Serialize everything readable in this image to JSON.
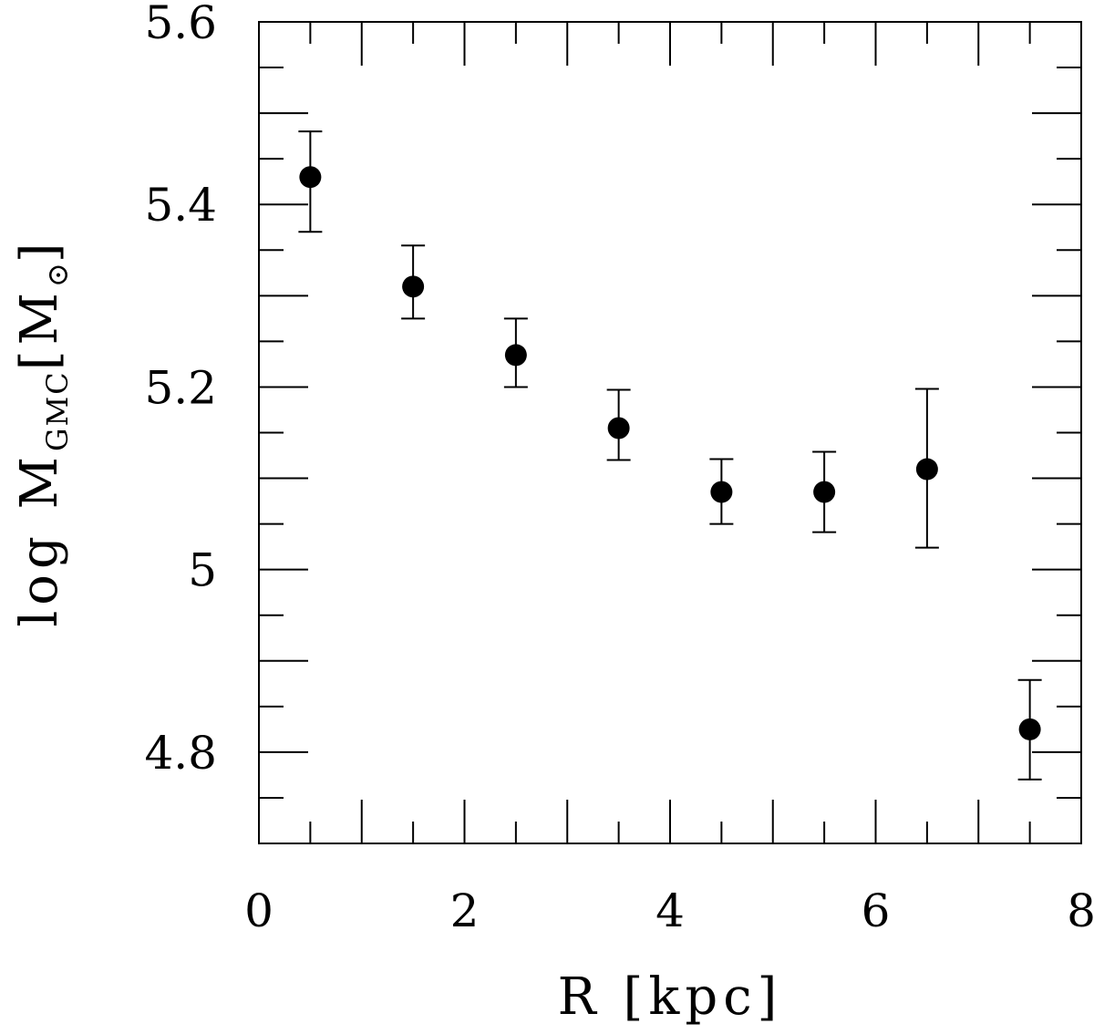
{
  "chart_data": {
    "type": "scatter",
    "xlabel": "R [kpc]",
    "ylabel_parts": {
      "prefix": "log M",
      "subscript": "GMC",
      "unit_open": "[M",
      "unit_subscript": "⊙",
      "unit_close": "]"
    },
    "xlim": [
      0,
      8
    ],
    "ylim": [
      4.7,
      5.6
    ],
    "x_ticks": [
      0,
      2,
      4,
      6,
      8
    ],
    "x_tick_labels": [
      "0",
      "2",
      "4",
      "6",
      "8"
    ],
    "x_minor_step": 0.5,
    "y_ticks": [
      4.8,
      5.0,
      5.2,
      5.4,
      5.6
    ],
    "y_tick_labels": [
      "4.8",
      "5",
      "5.2",
      "5.4",
      "5.6"
    ],
    "y_minor_step": 0.05,
    "grid": false,
    "legend": "none",
    "marker_color": "#000000",
    "points": [
      {
        "x": 0.5,
        "y": 5.43,
        "ylow": 5.37,
        "yhigh": 5.48
      },
      {
        "x": 1.5,
        "y": 5.31,
        "ylow": 5.275,
        "yhigh": 5.355
      },
      {
        "x": 2.5,
        "y": 5.235,
        "ylow": 5.2,
        "yhigh": 5.275
      },
      {
        "x": 3.5,
        "y": 5.155,
        "ylow": 5.12,
        "yhigh": 5.197
      },
      {
        "x": 4.5,
        "y": 5.085,
        "ylow": 5.05,
        "yhigh": 5.121
      },
      {
        "x": 5.5,
        "y": 5.085,
        "ylow": 5.041,
        "yhigh": 5.129
      },
      {
        "x": 6.5,
        "y": 5.11,
        "ylow": 5.024,
        "yhigh": 5.198
      },
      {
        "x": 7.5,
        "y": 4.825,
        "ylow": 4.77,
        "yhigh": 4.879
      }
    ]
  }
}
